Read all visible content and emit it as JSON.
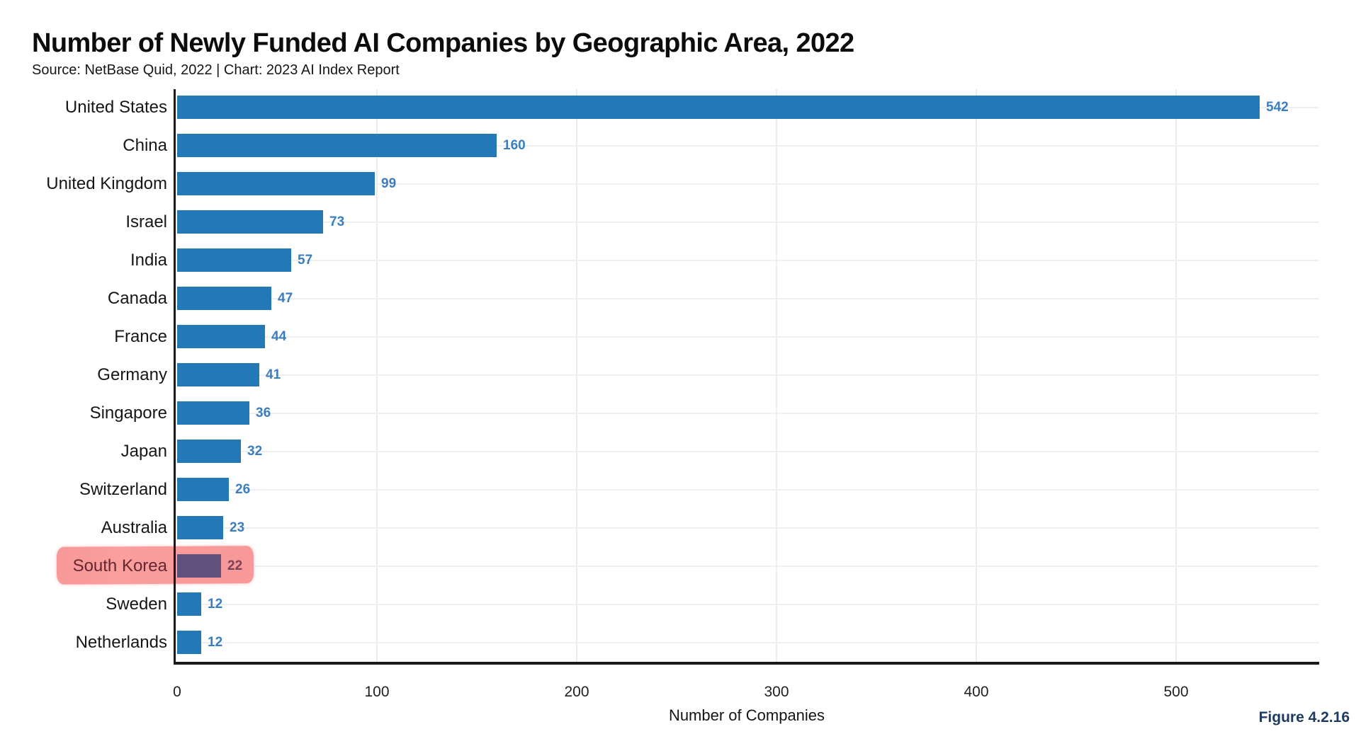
{
  "header": {
    "title": "Number of Newly Funded AI Companies by Geographic Area, 2022",
    "subtitle": "Source: NetBase Quid, 2022 | Chart: 2023 AI Index Report"
  },
  "chart_data": {
    "type": "bar",
    "orientation": "horizontal",
    "title": "Number of Newly Funded AI Companies by Geographic Area, 2022",
    "source_line": "Source: NetBase Quid, 2022 | Chart: 2023 AI Index Report",
    "xlabel": "Number of Companies",
    "categories": [
      "United States",
      "China",
      "United Kingdom",
      "Israel",
      "India",
      "Canada",
      "France",
      "Germany",
      "Singapore",
      "Japan",
      "Switzerland",
      "Australia",
      "South Korea",
      "Sweden",
      "Netherlands"
    ],
    "values": [
      542,
      160,
      99,
      73,
      57,
      47,
      44,
      41,
      36,
      32,
      26,
      23,
      22,
      12,
      12
    ],
    "xticks": [
      0,
      100,
      200,
      300,
      400,
      500
    ],
    "xlim": [
      0,
      572
    ],
    "grid": true,
    "legend": false,
    "value_labels_shown": true,
    "colors": {
      "bar": "#2378b5",
      "value_label": "#3b7ec0",
      "axis": "#1a1a1a",
      "gridline": "#ececec"
    },
    "highlight": {
      "category": "South Korea",
      "style": "pink-highlighter-overlay",
      "overlay_color": "#f89898",
      "bar_color_under_highlight": "#5e527d",
      "value_color_under_highlight": "#7c4158",
      "label_color_under_highlight": "#632730"
    }
  },
  "footer": {
    "figure_label": "Figure 4.2.16",
    "figure_label_color": "#1e3a5f"
  }
}
